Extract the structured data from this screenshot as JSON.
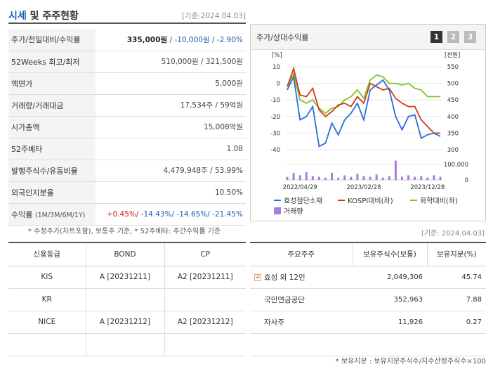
{
  "header": {
    "title_accent": "시세",
    "title_rest": " 및 주주현황",
    "date": "[기준:2024.04.03]"
  },
  "info_rows": [
    {
      "label": "주가/전일대비/수익률",
      "price": "335,000원",
      "sep1": " / ",
      "change": "-10,000원",
      "sep2": " / ",
      "rate": "-2.90%"
    },
    {
      "label": "52Weeks 최고/최저",
      "value": "510,000원 / 321,500원"
    },
    {
      "label": "액면가",
      "value": "5,000원"
    },
    {
      "label": "거래량/거래대금",
      "value": "17,534주 / 59억원"
    },
    {
      "label": "시가총액",
      "value": "15,008억원"
    },
    {
      "label": "52주베타",
      "value": "1.08"
    },
    {
      "label": "발행주식수/유동비율",
      "value": "4,479,948주 / 53.99%"
    },
    {
      "label": "외국인지분율",
      "value": "10.50%"
    },
    {
      "label": "수익률",
      "label_sub": "(1M/3M/6M/1Y)",
      "r1": "+0.45%/",
      "r2": " -14.43%/",
      "r3": " -14.65%/",
      "r4": " -21.45%"
    }
  ],
  "note1": "* 수정주가(차트포함), 보통주 기준, * 52주베타: 주간수익률 기준",
  "chart": {
    "title": "주가/상대수익률",
    "tabs": [
      "1",
      "2",
      "3"
    ],
    "left_unit": "[%]",
    "right_unit": "[천원]",
    "left_ticks": [
      "10",
      "0",
      "-10",
      "-20",
      "-30",
      "-40"
    ],
    "right_ticks": [
      "550",
      "500",
      "450",
      "400",
      "350",
      "300"
    ],
    "vol_ticks": [
      "100,000",
      "0"
    ],
    "x_ticks": [
      "2022/04/29",
      "2023/02/28",
      "2023/12/28"
    ],
    "legend": [
      "효성첨단소재",
      "KOSPI대비(좌)",
      "화학대비(좌)",
      "거래량"
    ],
    "colors": {
      "stock": "#2a6dd9",
      "kospi": "#d43a1a",
      "chem": "#7cc520",
      "volume": "#a57fd8"
    }
  },
  "chart_data": {
    "type": "line",
    "left_ylim": [
      -40,
      10
    ],
    "right_ylim": [
      300,
      550
    ],
    "volume_ylim": [
      0,
      100000
    ],
    "x_ticks": [
      "2022/04/29",
      "2023/02/28",
      "2023/12/28"
    ],
    "series": [
      {
        "name": "효성첨단소재",
        "axis": "right",
        "values": [
          480,
          520,
          390,
          400,
          430,
          310,
          320,
          380,
          345,
          390,
          410,
          440,
          390,
          480,
          495,
          510,
          480,
          400,
          360,
          400,
          405,
          335,
          345,
          350,
          340
        ]
      },
      {
        "name": "KOSPI대비(좌)",
        "axis": "left",
        "values": [
          -2,
          9,
          -7,
          -8,
          -3,
          -16,
          -20,
          -17,
          -13,
          -12,
          -14,
          -8,
          -12,
          0,
          -2,
          -4,
          -3,
          -9,
          -12,
          -14,
          -14,
          -22,
          -26,
          -30,
          -30
        ]
      },
      {
        "name": "화학대비(좌)",
        "axis": "left",
        "values": [
          -2,
          6,
          -10,
          -12,
          -10,
          -15,
          -18,
          -15,
          -14,
          -10,
          -8,
          -4,
          -9,
          2,
          5,
          4,
          0,
          0,
          -1,
          0,
          -3,
          -4,
          -8,
          -8,
          -8
        ]
      },
      {
        "name": "거래량",
        "axis": "volume",
        "values": [
          20000,
          45000,
          30000,
          50000,
          25000,
          20000,
          15000,
          45000,
          15000,
          30000,
          20000,
          40000,
          25000,
          20000,
          35000,
          15000,
          25000,
          130000,
          20000,
          30000,
          20000,
          25000,
          15000,
          30000,
          20000
        ]
      }
    ]
  },
  "date2": "[기준: 2024.04.03]",
  "credit": {
    "headers": [
      "신용등급",
      "BOND",
      "CP"
    ],
    "rows": [
      [
        "KIS",
        "A  [20231211]",
        "A2  [20231211]"
      ],
      [
        "KR",
        "",
        ""
      ],
      [
        "NICE",
        "A  [20231212]",
        "A2  [20231212]"
      ],
      [
        "",
        "",
        ""
      ]
    ]
  },
  "holders": {
    "headers": [
      "주요주주",
      "보유주식수(보통)",
      "보유지분(%)"
    ],
    "rows": [
      {
        "name": "효성  외 12인",
        "shares": "2,049,306",
        "ratio": "45.74",
        "expand": "+"
      },
      {
        "name": "국민연금공단",
        "shares": "352,963",
        "ratio": "7.88"
      },
      {
        "name": "자사주",
        "shares": "11,926",
        "ratio": "0.27"
      },
      {
        "name": "",
        "shares": "",
        "ratio": ""
      }
    ]
  },
  "note2": "* 보유지분 : 보유지분주식수/지수산정주식수×100"
}
